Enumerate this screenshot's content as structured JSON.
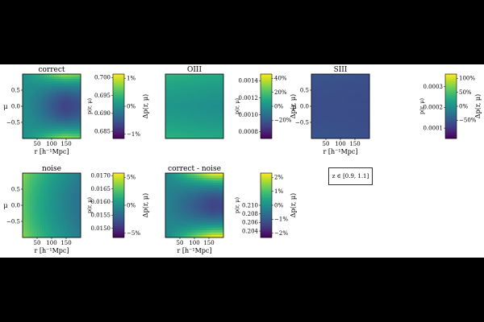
{
  "figure": {
    "redshift_label": "z ∈ [0.9, 1.1]",
    "x_axis_label": "r [h⁻¹Mpc]",
    "y_axis_label": "μ",
    "colorbar_left_label": "p(r, μ)",
    "colorbar_right_label": "Δp(r, μ)"
  },
  "colors": {
    "frame_background": "#000000",
    "panel_background": "#ffffff",
    "colormap": "viridis"
  },
  "chart_data": [
    {
      "type": "heatmap",
      "title": "correct",
      "xlabel": "r [h⁻¹Mpc]",
      "ylabel": "μ",
      "xlim": [
        0,
        200
      ],
      "ylim": [
        -1,
        1
      ],
      "x_ticks": [
        "50",
        "100",
        "150"
      ],
      "y_ticks": [
        "0.5",
        "0.0",
        "−0.5"
      ],
      "pattern": "quadrupole",
      "colorbar_range": [
        0.683,
        0.701
      ],
      "colorbar_ticks": [
        "0.700",
        "0.695",
        "0.690",
        "0.685"
      ],
      "percent_ticks": [
        "1%",
        "0%",
        "−1%"
      ],
      "colorbar_left_label": "p(r, μ)",
      "colorbar_right_label": "Δp(r, μ)"
    },
    {
      "type": "heatmap",
      "title": "OIII",
      "xlabel": "",
      "ylabel": "",
      "xlim": [
        0,
        200
      ],
      "ylim": [
        -1,
        1
      ],
      "x_ticks": [],
      "y_ticks": [],
      "pattern": "mu_weak",
      "colorbar_range": [
        0.00072,
        0.00148
      ],
      "colorbar_ticks": [
        "0.0014",
        "0.0012",
        "0.0010",
        "0.0008"
      ],
      "percent_ticks": [
        "40%",
        "20%",
        "0%",
        "−20%"
      ],
      "colorbar_left_label": "p(r, μ)",
      "colorbar_right_label": "Δp(r, μ)"
    },
    {
      "type": "heatmap",
      "title": "SIII",
      "xlabel": "r [h⁻¹Mpc]",
      "ylabel": "μ",
      "xlim": [
        0,
        200
      ],
      "ylim": [
        -1,
        1
      ],
      "x_ticks": [
        "50",
        "100",
        "150"
      ],
      "y_ticks": [
        "0.5",
        "0.0",
        "−0.5"
      ],
      "pattern": "flat",
      "colorbar_range": [
        5e-05,
        0.00036
      ],
      "colorbar_ticks": [
        "0.0003",
        "0.0002",
        "0.0001"
      ],
      "percent_ticks": [
        "100%",
        "50%",
        "0%",
        "−50%"
      ],
      "colorbar_left_label": "p(r, μ)",
      "colorbar_right_label": "Δp(r, μ)"
    },
    {
      "type": "heatmap",
      "title": "noise",
      "xlabel": "r [h⁻¹Mpc]",
      "ylabel": "μ",
      "xlim": [
        0,
        200
      ],
      "ylim": [
        -1,
        1
      ],
      "x_ticks": [
        "50",
        "100",
        "150"
      ],
      "y_ticks": [
        "0.5",
        "0.0",
        "−0.5"
      ],
      "pattern": "r_gradient",
      "colorbar_range": [
        0.01465,
        0.0171
      ],
      "colorbar_ticks": [
        "0.0170",
        "0.0165",
        "0.0160",
        "0.0155",
        "0.0150"
      ],
      "percent_ticks": [
        "5%",
        "0%",
        "−5%"
      ],
      "colorbar_left_label": "p(r, μ)",
      "colorbar_right_label": "Δp(r, μ)"
    },
    {
      "type": "heatmap",
      "title": "correct - noise",
      "xlabel": "r [h⁻¹Mpc]",
      "ylabel": "",
      "xlim": [
        0,
        200
      ],
      "ylim": [
        -1,
        1
      ],
      "x_ticks": [
        "50",
        "100",
        "150"
      ],
      "y_ticks": [],
      "pattern": "quadrupole_strong",
      "colorbar_range": [
        0.2025,
        0.2175
      ],
      "colorbar_ticks": [
        "0.210",
        "0.208",
        "0.206",
        "0.204"
      ],
      "percent_ticks": [
        "2%",
        "1%",
        "0%",
        "−1%",
        "−2%"
      ],
      "colorbar_left_label": "p(r, μ)",
      "colorbar_right_label": "Δp(r, μ)"
    }
  ]
}
